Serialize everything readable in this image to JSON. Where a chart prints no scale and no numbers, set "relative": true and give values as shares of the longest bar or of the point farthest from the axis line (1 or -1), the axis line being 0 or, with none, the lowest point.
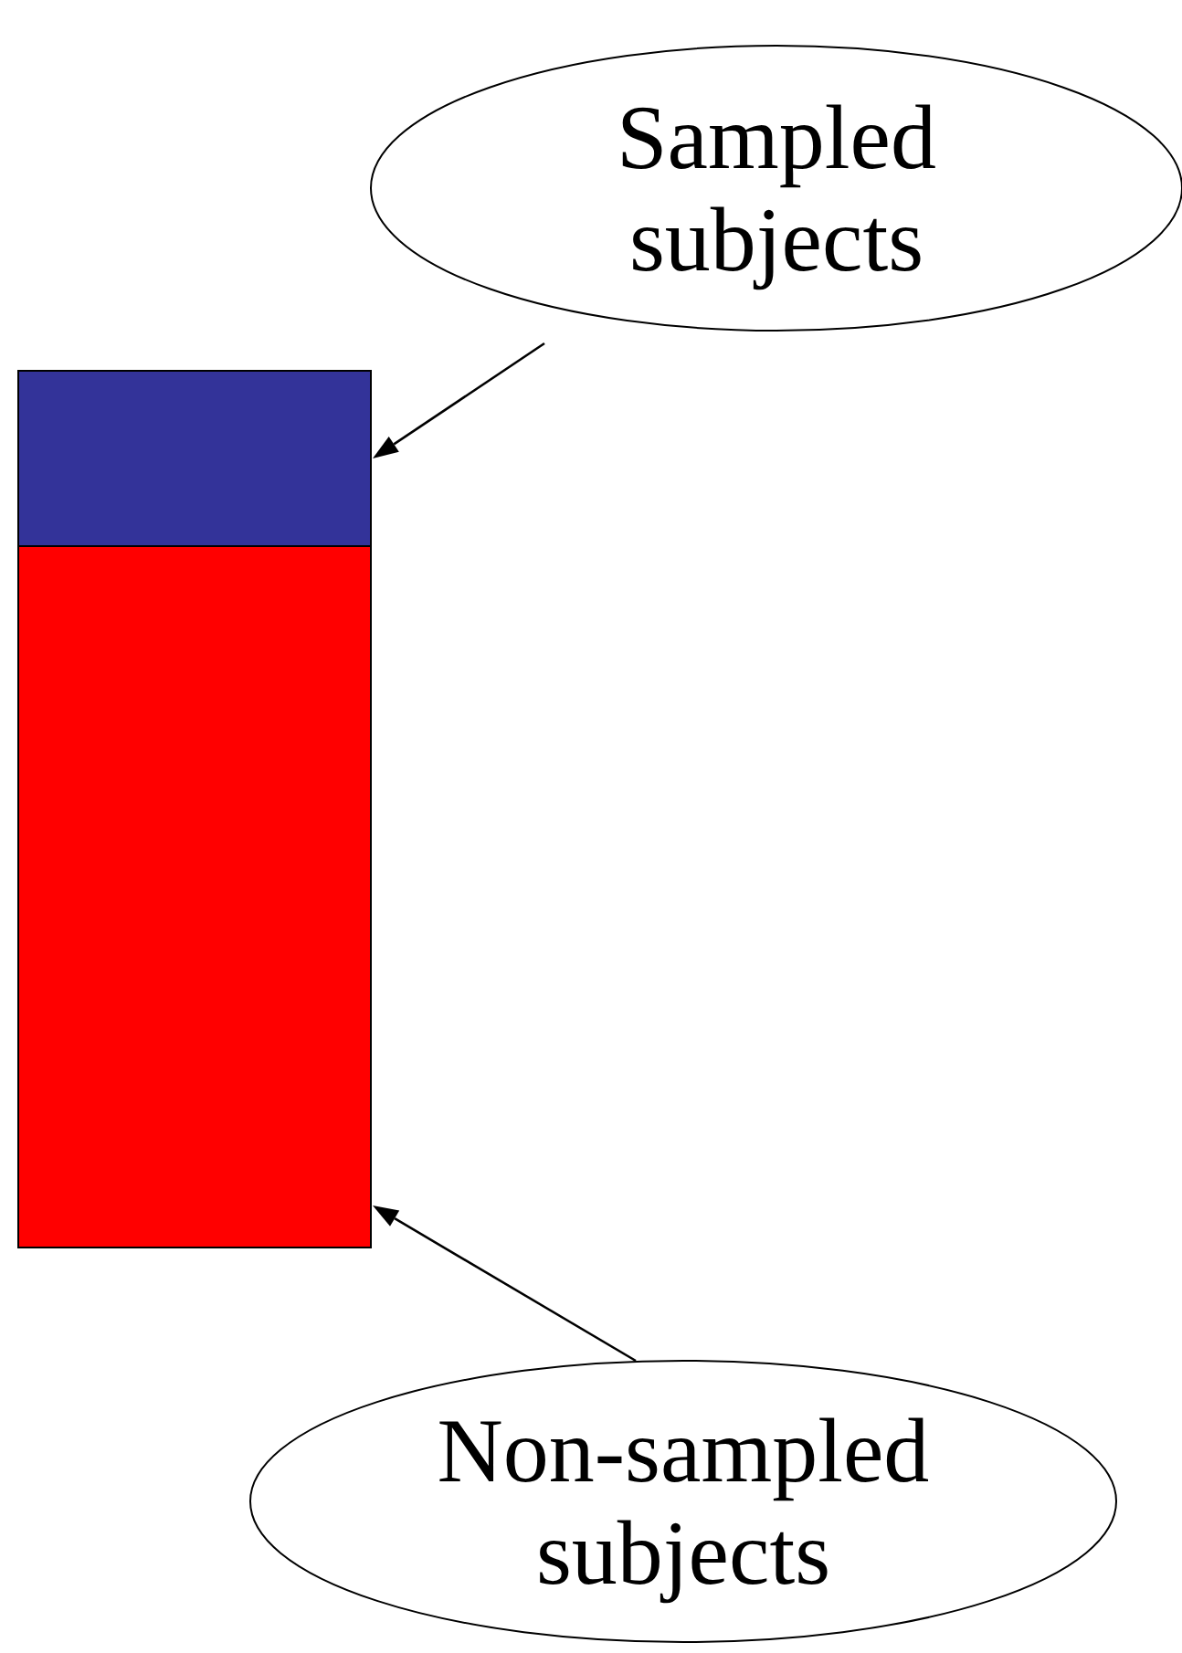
{
  "chart_data": {
    "type": "bar",
    "relative": true,
    "stacked": true,
    "categories": [
      null
    ],
    "series": [
      {
        "name": "Non-sampled subjects",
        "color": "#ff0000",
        "values": [
          0.8
        ]
      },
      {
        "name": "Sampled subjects",
        "color": "#333399",
        "values": [
          0.2
        ]
      }
    ]
  }
}
